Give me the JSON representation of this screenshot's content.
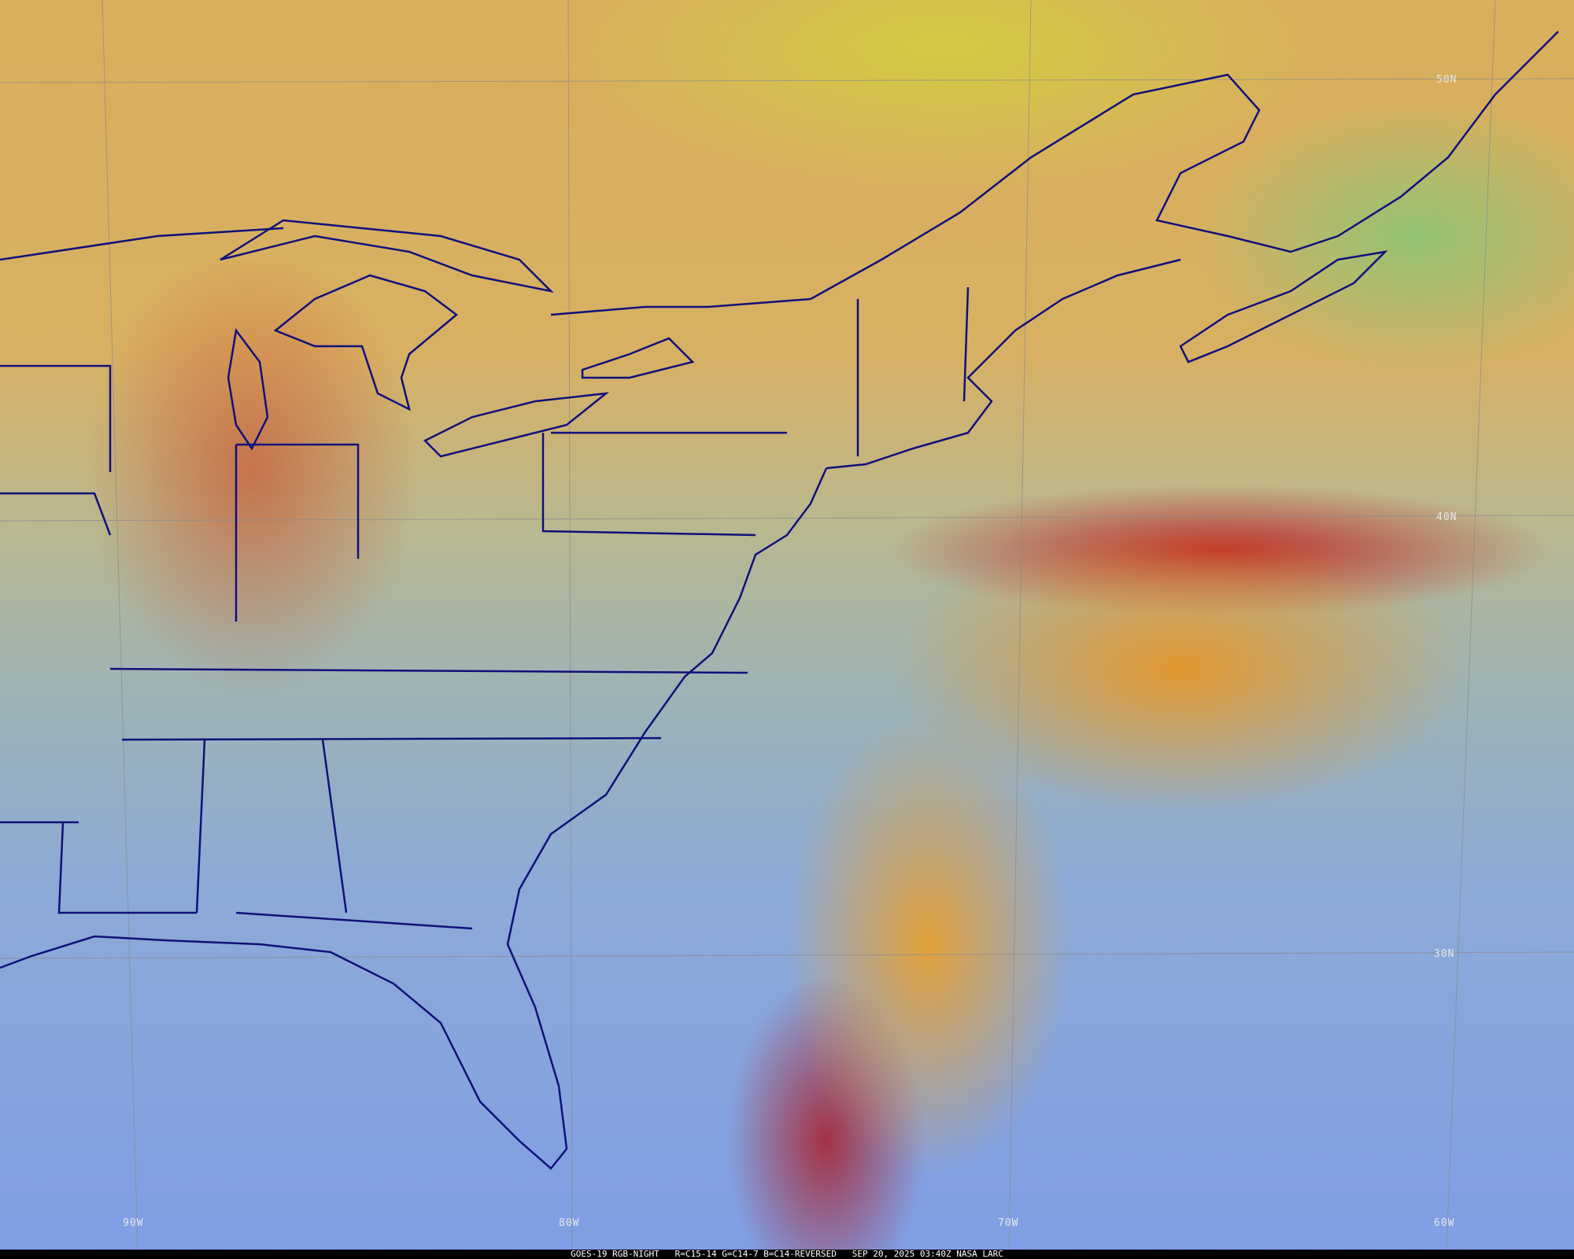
{
  "colors": {
    "boundaries": "#10107a",
    "graticule": "#8a8a8a",
    "caption_bg": "#000000",
    "caption_text": "#ffffff"
  },
  "graticule": {
    "lat_labels": [
      "50N",
      "40N",
      "30N"
    ],
    "lon_labels": [
      "90W",
      "80W",
      "70W",
      "60W"
    ]
  },
  "caption": {
    "text": "GOES-19 RGB-NIGHT   R=C15-14 G=C14-7 B=C14-REVERSED   SEP 20, 2025 03:40Z NASA LARC"
  }
}
